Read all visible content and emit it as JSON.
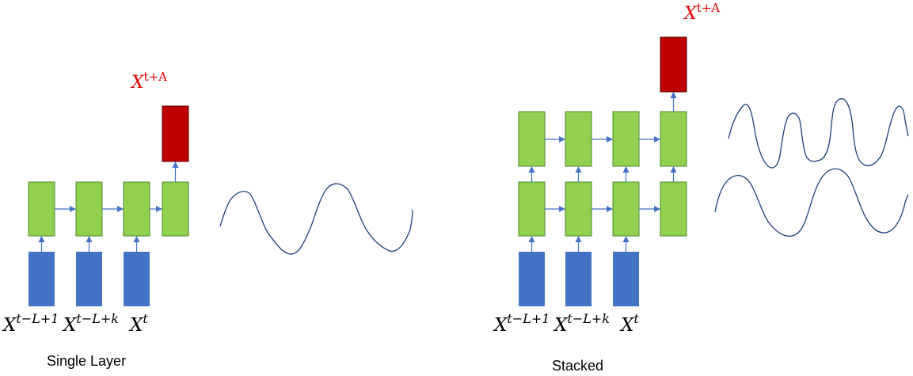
{
  "colors": {
    "input": "#4472C4",
    "hidden": "#92D050",
    "output": "#C00000",
    "arrow": "#4472C4",
    "wave": "#1F3F7A",
    "output_label": "#E00000",
    "text": "#000000"
  },
  "single": {
    "caption": "Single Layer",
    "output_label": {
      "base": "X",
      "sup": "t+A"
    },
    "input_labels": [
      {
        "base": "X",
        "sup": "t−L+1"
      },
      {
        "base": "X",
        "sup": "t−L+k"
      },
      {
        "base": "X",
        "sup": "t"
      }
    ]
  },
  "stacked": {
    "caption": "Stacked",
    "output_label": {
      "base": "X",
      "sup": "t+A"
    },
    "input_labels": [
      {
        "base": "X",
        "sup": "t−L+1"
      },
      {
        "base": "X",
        "sup": "t−L+k"
      },
      {
        "base": "X",
        "sup": "t"
      }
    ]
  }
}
